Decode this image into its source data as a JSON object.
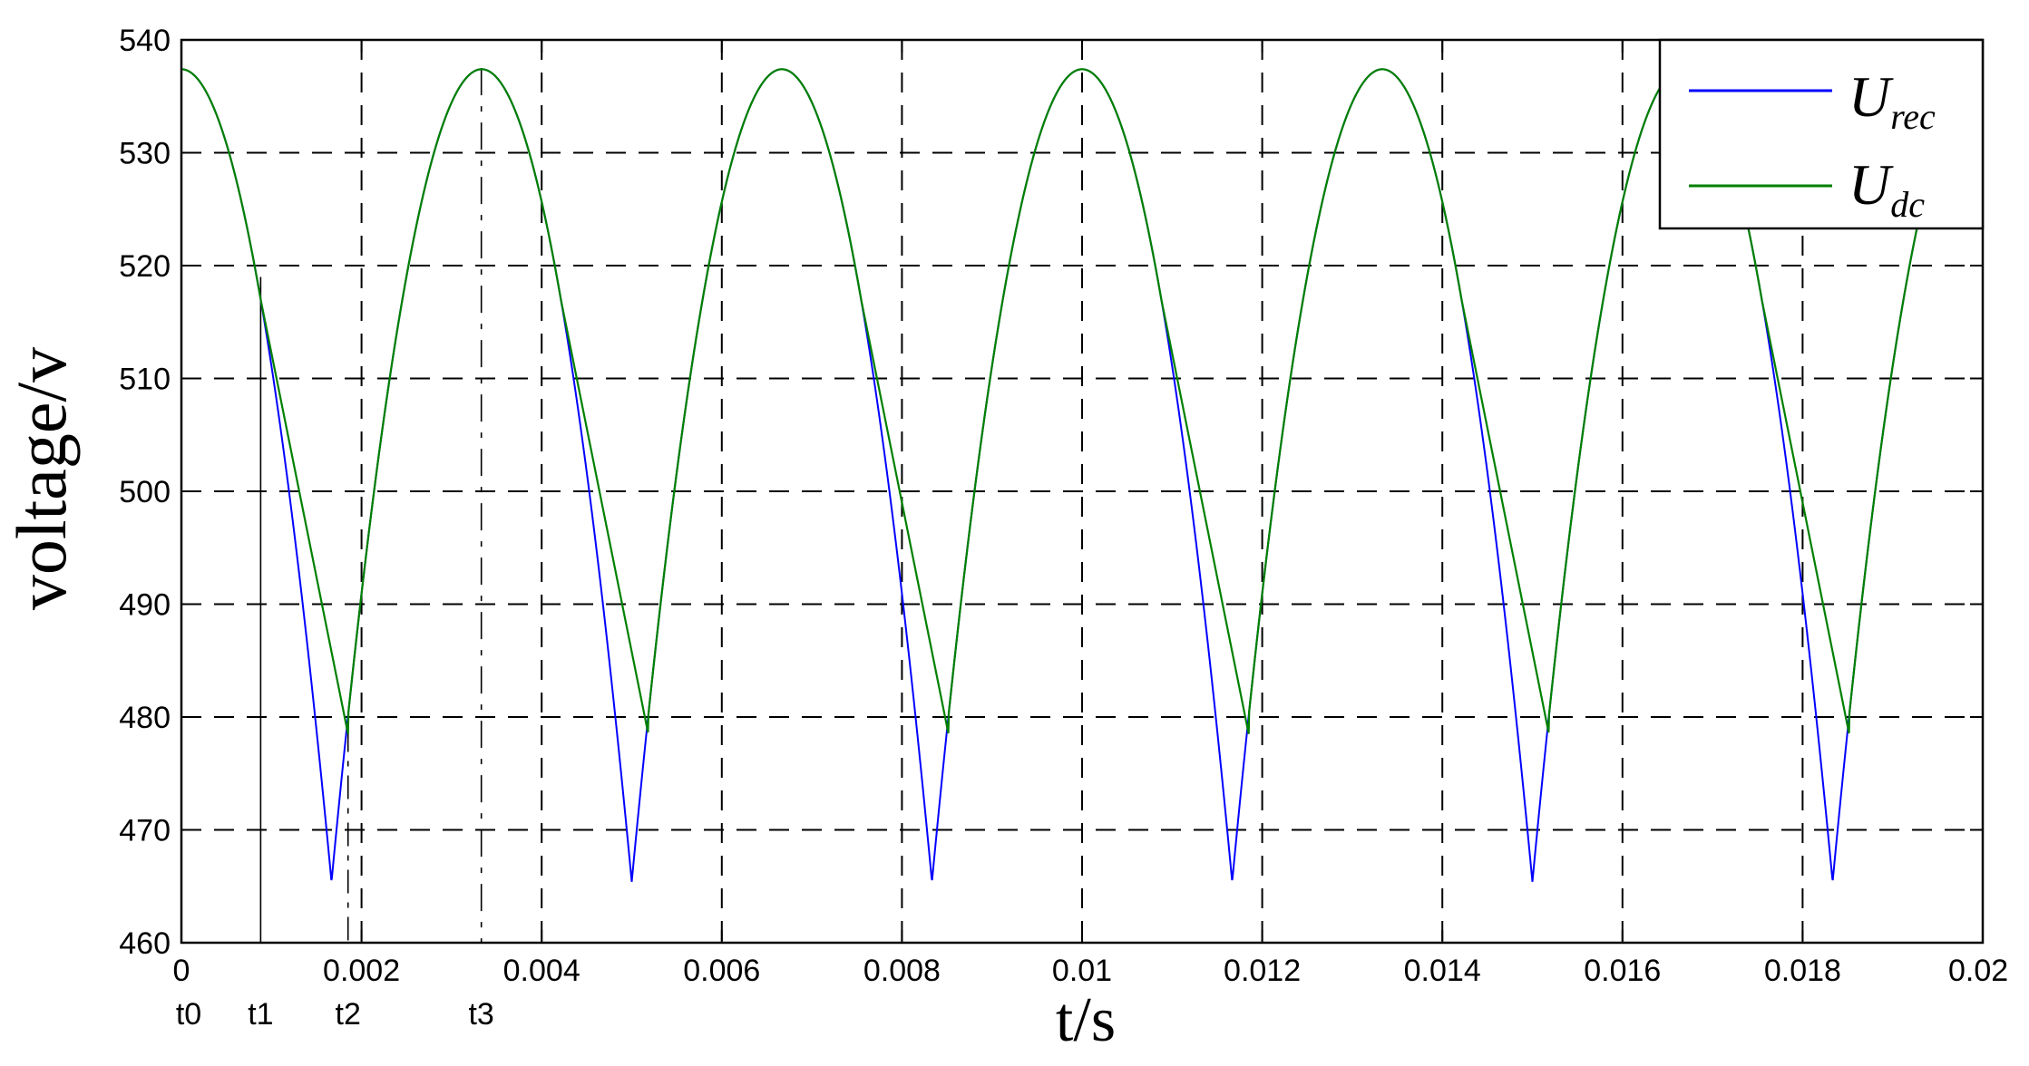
{
  "chart_data": {
    "type": "line",
    "xlabel": "t/s",
    "ylabel": "voltage/v",
    "xlim": [
      0,
      0.02
    ],
    "ylim": [
      460,
      540
    ],
    "grid": true,
    "legend_position": "top-right",
    "x_ticks": [
      0,
      0.002,
      0.004,
      0.006,
      0.008,
      0.01,
      0.012,
      0.014,
      0.016,
      0.018,
      0.02
    ],
    "x_tick_labels": [
      "0",
      "0.002",
      "0.004",
      "0.006",
      "0.008",
      "0.01",
      "0.012",
      "0.014",
      "0.016",
      "0.018",
      "0.02"
    ],
    "y_ticks": [
      460,
      470,
      480,
      490,
      500,
      510,
      520,
      530,
      540
    ],
    "y_tick_labels": [
      "460",
      "470",
      "480",
      "490",
      "500",
      "510",
      "520",
      "530",
      "540"
    ],
    "time_markers": [
      {
        "label": "t0",
        "x": 0
      },
      {
        "label": "t1",
        "x": 0.00088
      },
      {
        "label": "t2",
        "x": 0.00185
      },
      {
        "label": "t3",
        "x": 0.00333
      }
    ],
    "series": [
      {
        "name": "U_rec",
        "legend_base": "U",
        "legend_sub": "rec",
        "color": "#0000ff",
        "description_values": {
          "peak": 537.4,
          "trough": 465.4,
          "trough_times": [
            0.00167,
            0.005,
            0.00833,
            0.01167,
            0.015,
            0.01833
          ]
        }
      },
      {
        "name": "U_dc",
        "legend_base": "U",
        "legend_sub": "dc",
        "color": "#008000",
        "description_values": {
          "peak": 537.4,
          "valley": 478.5,
          "valley_times": [
            0.00185,
            0.00518,
            0.00852,
            0.01185,
            0.01518,
            0.01852
          ]
        }
      }
    ]
  }
}
